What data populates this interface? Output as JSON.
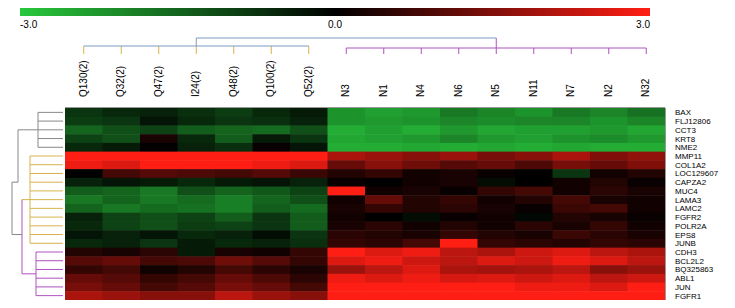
{
  "chart_data": {
    "type": "heatmap",
    "columns": [
      "Q130(2)",
      "Q32(2)",
      "Q47(2)",
      "I24(2)",
      "Q48(2)",
      "Q100(2)",
      "Q52(2)",
      "N3",
      "N1",
      "N4",
      "N6",
      "N5",
      "N11",
      "N7",
      "N2",
      "N32"
    ],
    "rows": [
      "BAX",
      "FLJ12806",
      "CCT3",
      "KRT8",
      "NME2",
      "MMP11",
      "COL1A2",
      "LOC129607",
      "CAPZA2",
      "MUC4",
      "LAMA3",
      "LAMC2",
      "FGFR2",
      "POLR2A",
      "EPS8",
      "JUNB",
      "CDH3",
      "BCL2L2",
      "BQ325863",
      "ABL1",
      "JUN",
      "FGFR1"
    ],
    "cells": [
      [
        -0.8,
        -0.6,
        -0.5,
        -0.7,
        -0.9,
        -0.6,
        -0.4,
        -2.2,
        -2.4,
        -2.3,
        -1.8,
        -2.0,
        -2.2,
        -1.8,
        -2.0,
        -1.7
      ],
      [
        -0.9,
        -0.8,
        -0.3,
        -0.6,
        -0.8,
        -0.7,
        -0.5,
        -2.2,
        -2.3,
        -2.2,
        -2.0,
        -2.1,
        -2.0,
        -2.0,
        -2.2,
        -2.0
      ],
      [
        -1.5,
        -1.2,
        -1.0,
        -1.4,
        -1.5,
        -1.6,
        -1.2,
        -2.6,
        -2.4,
        -2.6,
        -2.3,
        -2.5,
        -2.4,
        -2.4,
        -2.3,
        -2.5
      ],
      [
        -1.0,
        -1.2,
        0.3,
        -0.6,
        -1.4,
        -0.4,
        -0.8,
        -2.5,
        -2.4,
        -2.3,
        -2.0,
        -2.3,
        -2.4,
        -2.2,
        -2.1,
        -2.3
      ],
      [
        -0.6,
        -0.4,
        0,
        -0.5,
        -0.7,
        0.1,
        -0.3,
        -2.6,
        -2.6,
        -2.5,
        -2.6,
        -2.5,
        -2.6,
        -2.5,
        -2.6,
        -2.6
      ],
      [
        3,
        3,
        3,
        3,
        3,
        3,
        3,
        2.0,
        1.8,
        1.6,
        1.8,
        1.4,
        1.6,
        2.0,
        1.5,
        1.7
      ],
      [
        2.8,
        2.6,
        3,
        3,
        3,
        2.8,
        2.6,
        1.2,
        1.6,
        1.3,
        1.0,
        1.2,
        0.9,
        1.4,
        1.2,
        1.5
      ],
      [
        0,
        0.8,
        1.0,
        0.9,
        0.8,
        1.0,
        0.7,
        0.4,
        0.6,
        0.2,
        0.3,
        0.1,
        0,
        -0.8,
        0.2,
        0.4
      ],
      [
        -0.5,
        -0.3,
        -0.4,
        -0.6,
        -0.4,
        -0.3,
        -0.5,
        0.1,
        0,
        0.2,
        0.3,
        -0.2,
        0,
        0.2,
        0.4,
        0.1
      ],
      [
        -1.4,
        -1.5,
        -1.8,
        -1.2,
        -1.5,
        -1.3,
        -1.0,
        3.0,
        0.2,
        0.3,
        0.1,
        0.6,
        0.8,
        0.2,
        0.5,
        0.3
      ],
      [
        -1.8,
        -1.5,
        -1.8,
        -1.6,
        -1.9,
        -1.5,
        -1.2,
        0.2,
        1.2,
        0.4,
        0.6,
        0.2,
        0.4,
        0.8,
        0.3,
        0.2
      ],
      [
        -1.5,
        -1.8,
        -1.6,
        -1.7,
        -1.9,
        -1.4,
        -1.6,
        0.3,
        0.6,
        0.4,
        0.5,
        0.3,
        0.1,
        0.7,
        0.8,
        0.2
      ],
      [
        -0.5,
        -1.0,
        -1.2,
        -1.0,
        -1.4,
        -0.8,
        -1.4,
        0.2,
        0,
        -0.2,
        0.1,
        0.2,
        -0.1,
        0.4,
        0.3,
        0.1
      ],
      [
        -0.6,
        -1.0,
        -1.2,
        -0.9,
        -1.0,
        -0.8,
        -1.4,
        0.3,
        0.5,
        0.2,
        0.4,
        0.2,
        0.5,
        0.3,
        0.6,
        0.2
      ],
      [
        -0.3,
        -0.5,
        -0.3,
        -0.6,
        -0.5,
        -0.2,
        -0.8,
        0.5,
        0.4,
        0.3,
        0.6,
        0.4,
        0.3,
        0.7,
        0.5,
        0.3
      ],
      [
        -0.6,
        -0.5,
        -0.8,
        -0.4,
        -0.6,
        -0.5,
        -0.7,
        0.6,
        0.5,
        0.8,
        3.0,
        0.6,
        0.5,
        0.4,
        0.6,
        0.5
      ],
      [
        0.4,
        0.3,
        0.5,
        -0.4,
        0.3,
        0.2,
        0.6,
        3.0,
        2.6,
        2.8,
        2.2,
        2.0,
        2.4,
        2.6,
        2.2,
        2.0
      ],
      [
        1.0,
        1.2,
        0.8,
        0.9,
        1.3,
        1.0,
        0.6,
        2.6,
        2.8,
        2.4,
        2.2,
        2.6,
        2.4,
        2.8,
        2.6,
        2.2
      ],
      [
        0.6,
        0.8,
        0.2,
        0.4,
        0.8,
        0.5,
        0.3,
        1.8,
        2.2,
        2.6,
        2.0,
        1.9,
        2.0,
        2.2,
        1.6,
        1.8
      ],
      [
        1.2,
        1.0,
        0.6,
        0.8,
        1.2,
        0.9,
        0.5,
        2.8,
        2.6,
        2.8,
        2.5,
        2.6,
        2.4,
        2.6,
        2.2,
        2.4
      ],
      [
        1.4,
        1.2,
        0.8,
        1.0,
        1.4,
        1.2,
        0.8,
        3,
        3,
        3,
        3,
        3,
        2.8,
        2.8,
        2.6,
        3
      ],
      [
        2.0,
        1.8,
        1.6,
        1.6,
        2.2,
        1.8,
        1.6,
        3,
        3,
        3,
        3,
        3,
        3,
        3,
        3,
        3
      ]
    ],
    "colorbar_range": [
      -3,
      3
    ],
    "colorbar_ticks": [
      {
        "value": -3,
        "label": "-3.0"
      },
      {
        "value": 0,
        "label": "0.0"
      },
      {
        "value": 3,
        "label": "3.0"
      }
    ]
  }
}
